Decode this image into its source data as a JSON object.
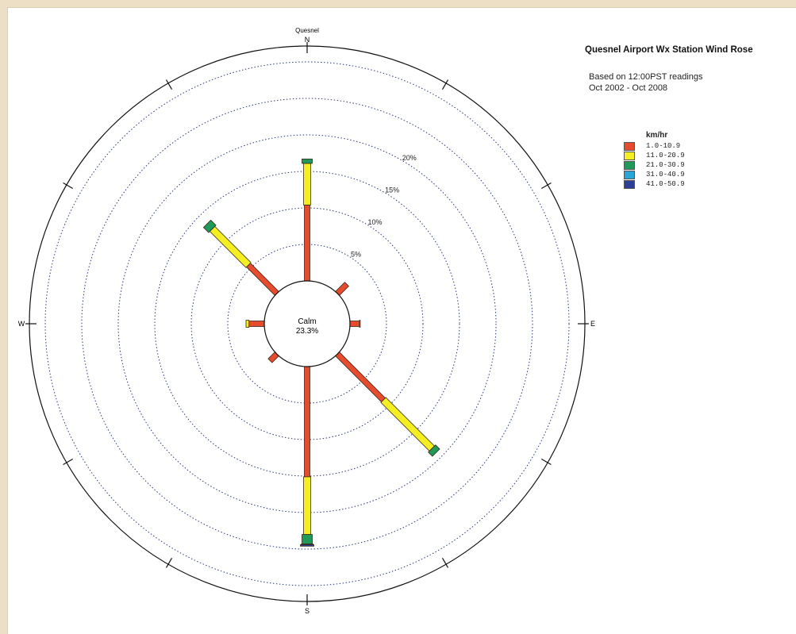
{
  "chart_data": {
    "type": "wind-rose",
    "title": "Quesnel Airport Wx Station Wind Rose",
    "subtitle_lines": [
      "Based on 12:00PST readings",
      "Oct 2002 - Oct 2008"
    ],
    "top_label": "Quesnel",
    "compass": {
      "n": "N",
      "e": "E",
      "s": "S",
      "w": "W"
    },
    "calm": {
      "label": "Calm",
      "value": "23.3%"
    },
    "rings": [
      {
        "value": 5,
        "label": "5%"
      },
      {
        "value": 10,
        "label": "10%"
      },
      {
        "value": 15,
        "label": "15%"
      },
      {
        "value": 20,
        "label": "20%"
      },
      {
        "value": 25,
        "label": ""
      },
      {
        "value": 30,
        "label": ""
      }
    ],
    "legend": {
      "title": "km/hr",
      "bins": [
        {
          "label": "1.0-10.9",
          "color": "#e64b2e"
        },
        {
          "label": "11.0-20.9",
          "color": "#f5ef22"
        },
        {
          "label": "21.0-30.9",
          "color": "#1f9a58"
        },
        {
          "label": "31.0-40.9",
          "color": "#2aa6d6"
        },
        {
          "label": "41.0-50.9",
          "color": "#2d3f97"
        }
      ]
    },
    "directions": [
      {
        "dir": "N",
        "segments": [
          10.4,
          5.7,
          0.6
        ]
      },
      {
        "dir": "NE",
        "segments": [
          1.8
        ]
      },
      {
        "dir": "E",
        "segments": [
          1.3,
          0.1
        ]
      },
      {
        "dir": "SE",
        "segments": [
          8.9,
          9.4,
          0.8
        ]
      },
      {
        "dir": "S",
        "segments": [
          15.1,
          7.9,
          1.3,
          0.1,
          0.2
        ]
      },
      {
        "dir": "SW",
        "segments": [
          1.3
        ]
      },
      {
        "dir": "W",
        "segments": [
          2.1,
          0.4
        ]
      },
      {
        "dir": "NW",
        "segments": [
          5.5,
          7.0,
          1.0
        ]
      }
    ]
  }
}
